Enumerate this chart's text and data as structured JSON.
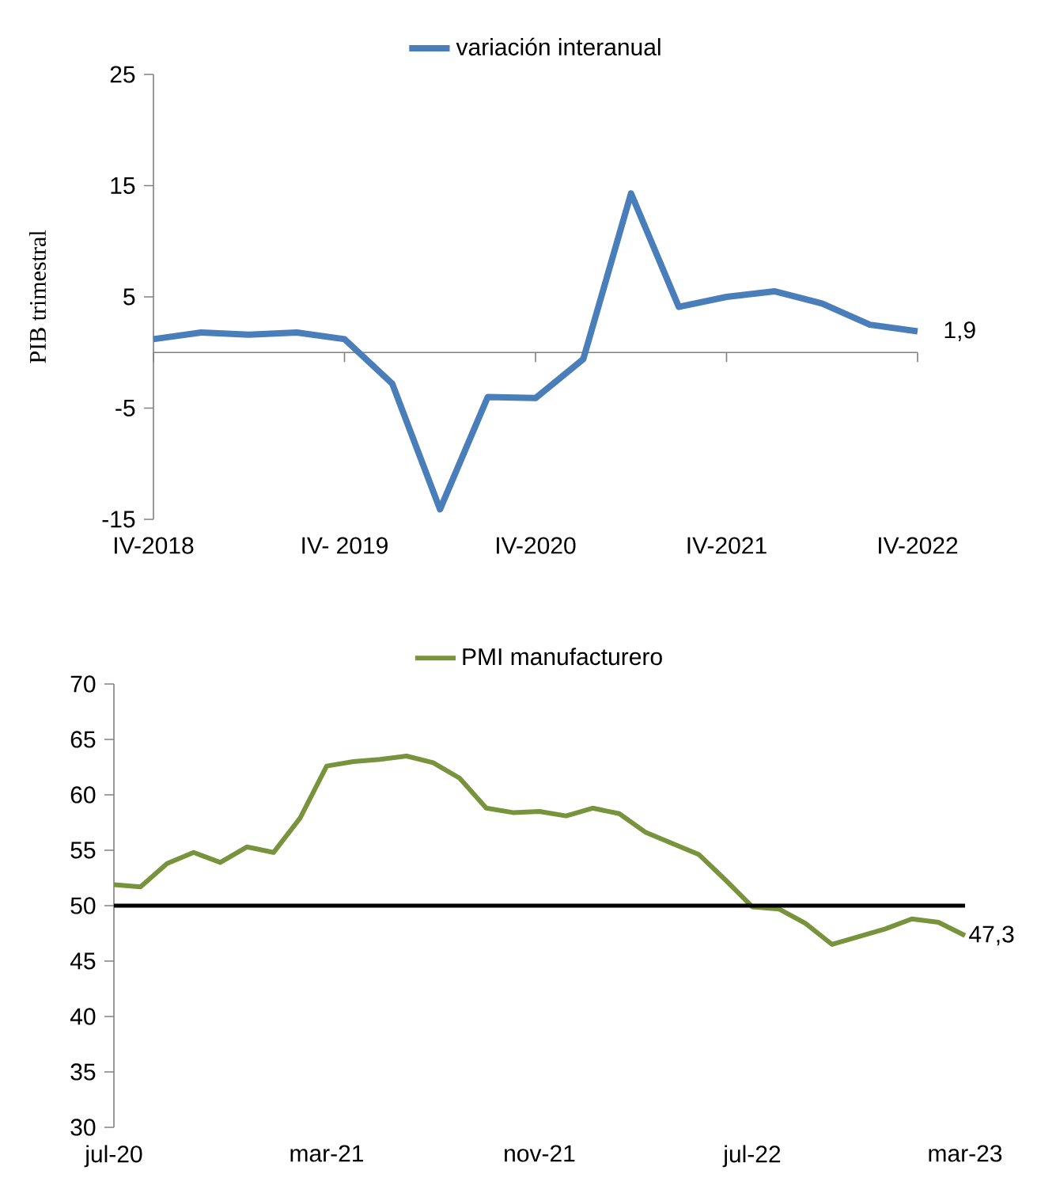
{
  "chart_data": [
    {
      "type": "line",
      "ylabel": "PIB trimestral",
      "legend": "top",
      "categories": [
        "IV-2018",
        null,
        null,
        null,
        "IV- 2019",
        null,
        null,
        null,
        "IV-2020",
        null,
        null,
        null,
        "IV-2021",
        null,
        null,
        null,
        "IV-2022"
      ],
      "series": [
        {
          "name": "variación interanual",
          "color": "#4a7ebb",
          "values": [
            1.2,
            1.8,
            1.6,
            1.8,
            1.2,
            -2.8,
            -14.1,
            -4.0,
            -4.1,
            -0.6,
            14.3,
            4.1,
            5.0,
            5.5,
            4.4,
            2.5,
            1.9
          ],
          "value_labels": [
            null,
            null,
            null,
            null,
            null,
            null,
            null,
            null,
            null,
            null,
            null,
            null,
            null,
            null,
            null,
            null,
            "1,9"
          ]
        }
      ],
      "ylim": [
        -15,
        25
      ],
      "yticks": [
        -15,
        -5,
        5,
        15,
        25
      ]
    },
    {
      "type": "line",
      "legend": "top",
      "categories": [
        "jul-20",
        null,
        null,
        null,
        null,
        null,
        null,
        null,
        "mar-21",
        null,
        null,
        null,
        null,
        null,
        null,
        null,
        "nov-21",
        null,
        null,
        null,
        null,
        null,
        null,
        null,
        "jul-22",
        null,
        null,
        null,
        null,
        null,
        null,
        null,
        "mar-23"
      ],
      "series": [
        {
          "name": "PMI manufacturero",
          "color": "#77933c",
          "values": [
            51.9,
            51.7,
            53.8,
            54.8,
            53.9,
            55.3,
            54.8,
            57.9,
            62.6,
            63.0,
            63.2,
            63.5,
            62.9,
            61.5,
            58.8,
            58.4,
            58.5,
            58.1,
            58.8,
            58.3,
            56.6,
            55.6,
            54.6,
            52.3,
            49.9,
            49.7,
            48.4,
            46.5,
            47.2,
            47.9,
            48.8,
            48.5,
            47.3
          ],
          "value_labels": [
            null,
            null,
            null,
            null,
            null,
            null,
            null,
            null,
            null,
            null,
            null,
            null,
            null,
            null,
            null,
            null,
            null,
            null,
            null,
            null,
            null,
            null,
            null,
            null,
            null,
            null,
            null,
            null,
            null,
            null,
            null,
            null,
            "47,3"
          ]
        }
      ],
      "ylim": [
        30,
        70
      ],
      "yticks": [
        30,
        35,
        40,
        45,
        50,
        55,
        60,
        65,
        70
      ],
      "ref_lines": [
        {
          "axis": "y",
          "value": 50,
          "color": "#000000"
        }
      ]
    }
  ]
}
